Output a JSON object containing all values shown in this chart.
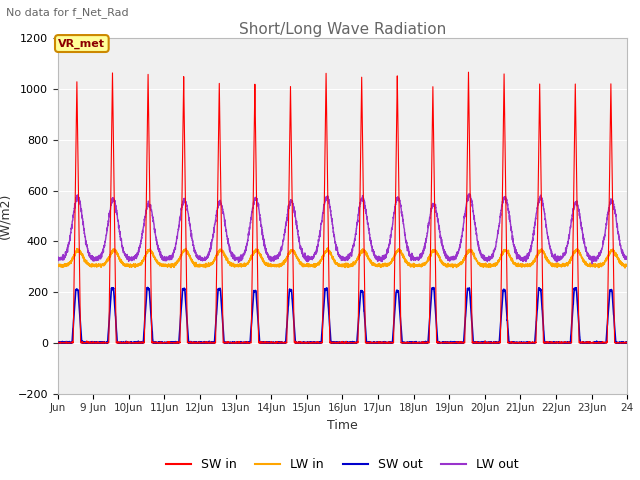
{
  "title": "Short/Long Wave Radiation",
  "subtitle": "No data for f_Net_Rad",
  "ylabel": "(W/m2)",
  "xlabel": "Time",
  "ylim": [
    -200,
    1200
  ],
  "x_tick_labels": [
    "Jun",
    "9 Jun",
    "10Jun",
    "11Jun",
    "12Jun",
    "13Jun",
    "14Jun",
    "15Jun",
    "16Jun",
    "17Jun",
    "18Jun",
    "19Jun",
    "20Jun",
    "21Jun",
    "22Jun",
    "23Jun",
    "24"
  ],
  "legend_labels": [
    "SW in",
    "LW in",
    "SW out",
    "LW out"
  ],
  "sw_in_color": "#ff0000",
  "lw_in_color": "#ffa500",
  "sw_out_color": "#0000cc",
  "lw_out_color": "#9933cc",
  "vr_met_label": "VR_met",
  "background_color": "#ffffff",
  "plot_bg_color": "#f0f0f0",
  "grid_color": "#ffffff",
  "n_days": 16,
  "sw_in_peak": 1040,
  "lw_in_base": 305,
  "lw_in_amplitude": 60,
  "sw_out_peak": 210,
  "lw_out_base": 330,
  "lw_out_amplitude": 230,
  "title_color": "#666666",
  "subtitle_color": "#666666",
  "tick_color": "#333333"
}
